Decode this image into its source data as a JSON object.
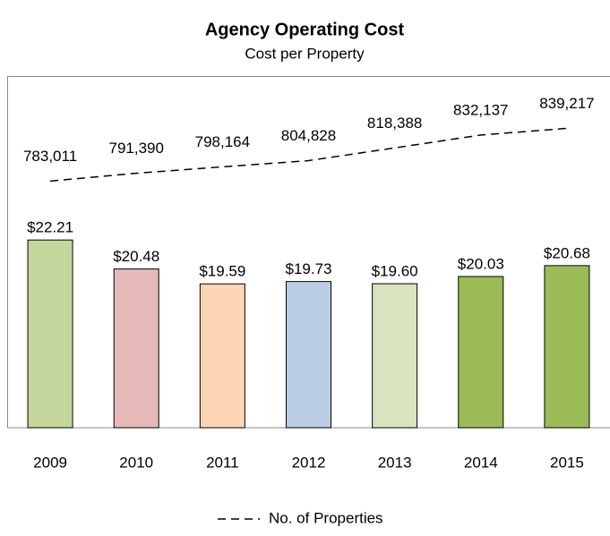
{
  "chart_data": {
    "type": "bar",
    "title": "Agency Operating Cost",
    "subtitle": "Cost per Property",
    "categories": [
      "2009",
      "2010",
      "2011",
      "2012",
      "2013",
      "2014",
      "2015"
    ],
    "series": [
      {
        "type": "bar",
        "colors": [
          "#c3d69b",
          "#e6b9b8",
          "#fcd5b5",
          "#b9cde5",
          "#d7e4bd",
          "#9bbb59",
          "#9bbb59"
        ],
        "values": [
          22.21,
          20.48,
          19.59,
          19.73,
          19.6,
          20.03,
          20.68
        ],
        "value_labels": [
          "$22.21",
          "$20.48",
          "$19.59",
          "$19.73",
          "$19.60",
          "$20.03",
          "$20.68"
        ]
      },
      {
        "type": "line",
        "name": "No. of Properties",
        "color": "#000000",
        "dashed": true,
        "axis": "y2",
        "values": [
          783011,
          791390,
          798164,
          804828,
          818388,
          832137,
          839217
        ],
        "value_labels": [
          "783,011",
          "791,390",
          "798,164",
          "804,828",
          "818,388",
          "832,137",
          "839,217"
        ]
      }
    ],
    "ylim": [
      11,
      32
    ],
    "y2lim": [
      520000,
      895000
    ],
    "legend": "bottom"
  }
}
